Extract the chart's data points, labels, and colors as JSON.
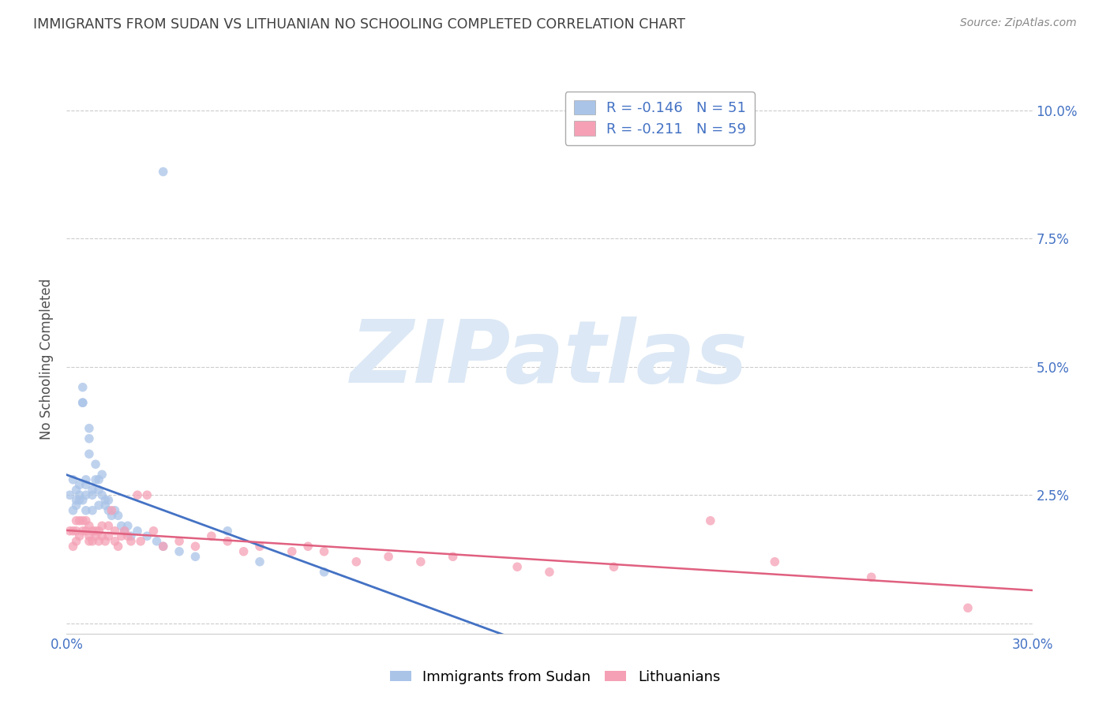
{
  "title": "IMMIGRANTS FROM SUDAN VS LITHUANIAN NO SCHOOLING COMPLETED CORRELATION CHART",
  "source": "Source: ZipAtlas.com",
  "ylabel": "No Schooling Completed",
  "xlim": [
    0.0,
    0.3
  ],
  "ylim": [
    -0.002,
    0.105
  ],
  "yticks": [
    0.0,
    0.025,
    0.05,
    0.075,
    0.1
  ],
  "ytick_labels": [
    "",
    "2.5%",
    "5.0%",
    "7.5%",
    "10.0%"
  ],
  "xticks": [
    0.0,
    0.05,
    0.1,
    0.15,
    0.2,
    0.25,
    0.3
  ],
  "xtick_labels": [
    "0.0%",
    "",
    "",
    "",
    "",
    "",
    "30.0%"
  ],
  "legend_entries": [
    {
      "label": "R = -0.146   N = 51",
      "color": "#aac4e8"
    },
    {
      "label": "R = -0.211   N = 59",
      "color": "#f5a0b5"
    }
  ],
  "series1_label": "Immigrants from Sudan",
  "series2_label": "Lithuanians",
  "series1_color": "#aac4e8",
  "series2_color": "#f5a0b5",
  "series1_line_color": "#4472c4",
  "series2_line_color": "#e06080",
  "background_color": "#ffffff",
  "watermark": "ZIPatlas",
  "watermark_color": "#dce8f5",
  "title_color": "#404040",
  "axis_label_color": "#4472c4",
  "series1_x": [
    0.001,
    0.002,
    0.002,
    0.003,
    0.003,
    0.003,
    0.004,
    0.004,
    0.004,
    0.005,
    0.005,
    0.005,
    0.005,
    0.006,
    0.006,
    0.006,
    0.006,
    0.007,
    0.007,
    0.007,
    0.008,
    0.008,
    0.008,
    0.009,
    0.009,
    0.01,
    0.01,
    0.01,
    0.011,
    0.011,
    0.012,
    0.012,
    0.013,
    0.013,
    0.014,
    0.015,
    0.016,
    0.017,
    0.018,
    0.019,
    0.02,
    0.022,
    0.025,
    0.028,
    0.03,
    0.035,
    0.04,
    0.05,
    0.06,
    0.08,
    0.03
  ],
  "series1_y": [
    0.025,
    0.022,
    0.028,
    0.024,
    0.026,
    0.023,
    0.025,
    0.027,
    0.024,
    0.043,
    0.046,
    0.043,
    0.024,
    0.025,
    0.027,
    0.028,
    0.022,
    0.033,
    0.036,
    0.038,
    0.022,
    0.025,
    0.026,
    0.028,
    0.031,
    0.023,
    0.026,
    0.028,
    0.025,
    0.029,
    0.024,
    0.023,
    0.022,
    0.024,
    0.021,
    0.022,
    0.021,
    0.019,
    0.018,
    0.019,
    0.017,
    0.018,
    0.017,
    0.016,
    0.015,
    0.014,
    0.013,
    0.018,
    0.012,
    0.01,
    0.088
  ],
  "series2_x": [
    0.001,
    0.002,
    0.002,
    0.003,
    0.003,
    0.003,
    0.004,
    0.004,
    0.005,
    0.005,
    0.006,
    0.006,
    0.007,
    0.007,
    0.007,
    0.008,
    0.008,
    0.009,
    0.009,
    0.01,
    0.01,
    0.011,
    0.011,
    0.012,
    0.013,
    0.013,
    0.014,
    0.015,
    0.015,
    0.016,
    0.017,
    0.018,
    0.019,
    0.02,
    0.022,
    0.023,
    0.025,
    0.027,
    0.03,
    0.035,
    0.04,
    0.045,
    0.05,
    0.055,
    0.06,
    0.07,
    0.075,
    0.08,
    0.09,
    0.1,
    0.11,
    0.12,
    0.14,
    0.15,
    0.17,
    0.2,
    0.22,
    0.25,
    0.28
  ],
  "series2_y": [
    0.018,
    0.015,
    0.018,
    0.016,
    0.018,
    0.02,
    0.017,
    0.02,
    0.018,
    0.02,
    0.018,
    0.02,
    0.016,
    0.017,
    0.019,
    0.016,
    0.018,
    0.017,
    0.018,
    0.016,
    0.018,
    0.017,
    0.019,
    0.016,
    0.017,
    0.019,
    0.022,
    0.016,
    0.018,
    0.015,
    0.017,
    0.018,
    0.017,
    0.016,
    0.025,
    0.016,
    0.025,
    0.018,
    0.015,
    0.016,
    0.015,
    0.017,
    0.016,
    0.014,
    0.015,
    0.014,
    0.015,
    0.014,
    0.012,
    0.013,
    0.012,
    0.013,
    0.011,
    0.01,
    0.011,
    0.02,
    0.012,
    0.009,
    0.003
  ],
  "grid_color": "#cccccc",
  "marker_size": 70
}
